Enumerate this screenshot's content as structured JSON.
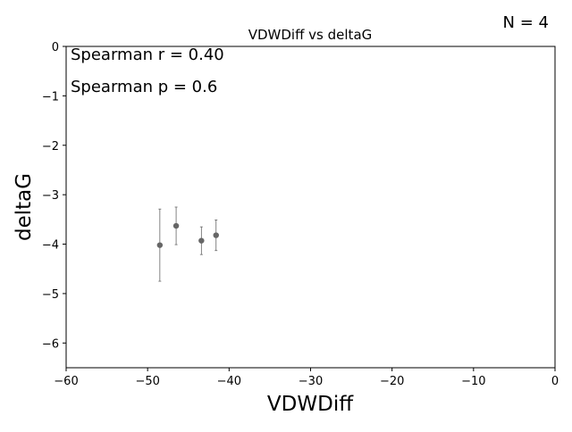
{
  "corner_label": "N = 4",
  "annotations": [
    "Spearman r = 0.40",
    "Spearman p = 0.6"
  ],
  "chart_data": {
    "type": "scatter",
    "title": "VDWDiff vs deltaG",
    "xlabel": "VDWDiff",
    "ylabel": "deltaG",
    "xlim": [
      -60,
      0
    ],
    "ylim": [
      -6.5,
      0
    ],
    "xticks": [
      -60,
      -50,
      -40,
      -30,
      -20,
      -10,
      0
    ],
    "yticks": [
      0,
      -1,
      -2,
      -3,
      -4,
      -5,
      -6
    ],
    "xtick_labels": [
      "−60",
      "−50",
      "−40",
      "−30",
      "−20",
      "−10",
      "0"
    ],
    "ytick_labels": [
      "0",
      "−1",
      "−2",
      "−3",
      "−4",
      "−5",
      "−6"
    ],
    "grid": false,
    "marker_color": "#666666",
    "points": [
      {
        "x": -48.5,
        "y": -4.02,
        "yerr": 0.73
      },
      {
        "x": -46.5,
        "y": -3.63,
        "yerr": 0.38
      },
      {
        "x": -43.4,
        "y": -3.93,
        "yerr": 0.28
      },
      {
        "x": -41.6,
        "y": -3.82,
        "yerr": 0.31
      }
    ]
  }
}
